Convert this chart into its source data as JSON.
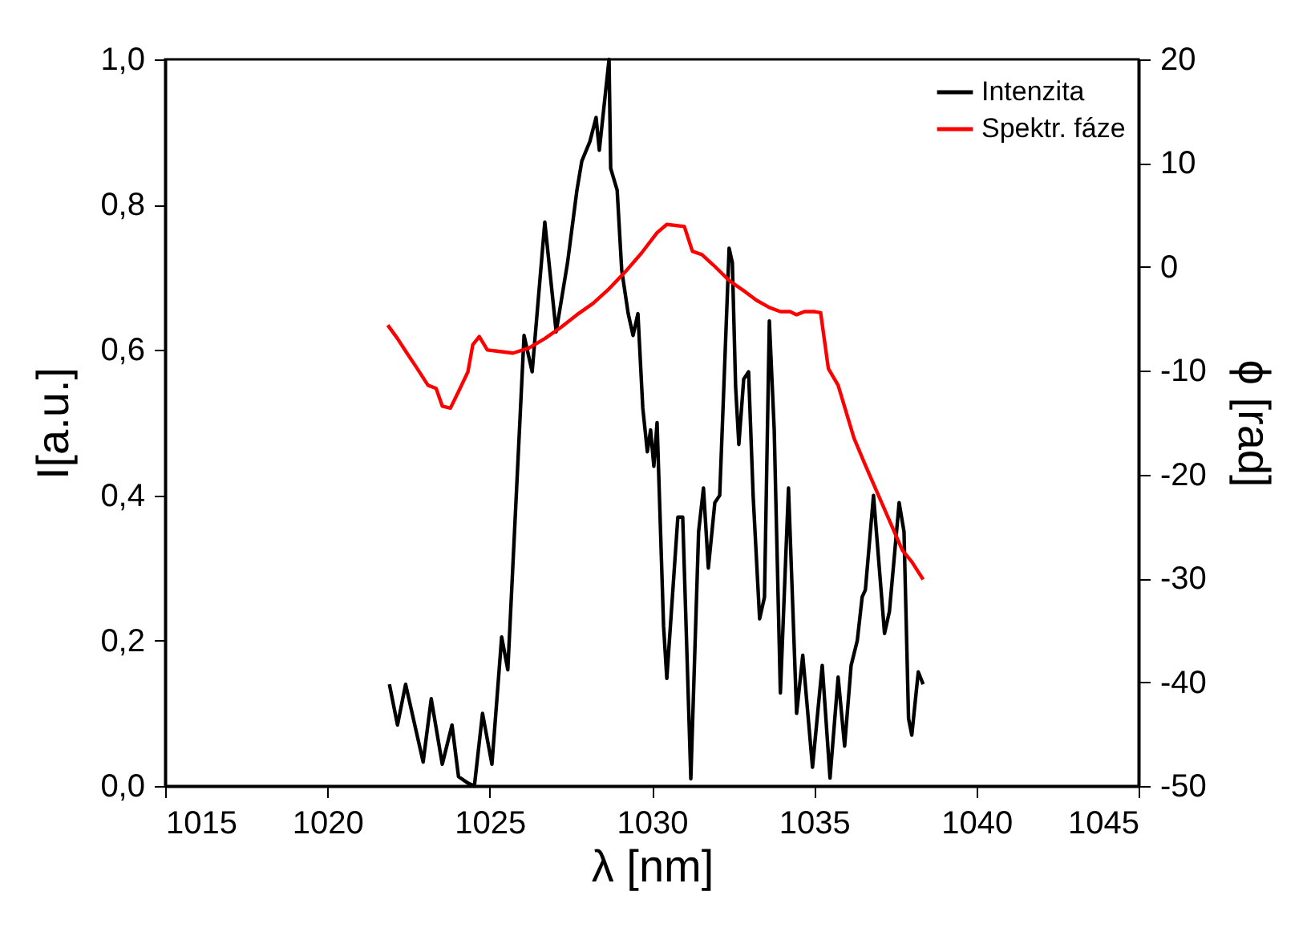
{
  "chart_data": {
    "type": "line",
    "xlabel": "λ [nm]",
    "ylabel": "I[a.u.]",
    "y2label": "ϕ [rad]",
    "xlim": [
      1015,
      1045
    ],
    "xticks": [
      1015,
      1020,
      1025,
      1030,
      1035,
      1040,
      1045
    ],
    "ylim": [
      0,
      1
    ],
    "yticks": [
      {
        "value": 0,
        "label": "0,0"
      },
      {
        "value": 0.2,
        "label": "0,2"
      },
      {
        "value": 0.4,
        "label": "0,4"
      },
      {
        "value": 0.6,
        "label": "0,6"
      },
      {
        "value": 0.8,
        "label": "0,8"
      },
      {
        "value": 1,
        "label": "1,0"
      }
    ],
    "y2lim": [
      -50,
      20
    ],
    "y2ticks": [
      -50,
      -40,
      -30,
      -20,
      -10,
      0,
      10,
      20
    ],
    "legend": "top right",
    "grid": false,
    "series": [
      {
        "name": "Intenzita",
        "color": "#000000",
        "x": [
          1021.91,
          1022.16,
          1022.41,
          1022.95,
          1023.2,
          1023.54,
          1023.84,
          1024.04,
          1024.33,
          1024.53,
          1024.78,
          1025.07,
          1025.37,
          1025.56,
          1026.06,
          1026.31,
          1026.7,
          1027.05,
          1027.4,
          1027.69,
          1027.84,
          1028.09,
          1028.28,
          1028.38,
          1028.68,
          1028.73,
          1028.93,
          1029.07,
          1029.27,
          1029.42,
          1029.57,
          1029.72,
          1029.86,
          1029.96,
          1030.06,
          1030.16,
          1030.36,
          1030.46,
          1030.8,
          1030.95,
          1031.2,
          1031.44,
          1031.59,
          1031.74,
          1031.94,
          1032.09,
          1032.38,
          1032.48,
          1032.58,
          1032.68,
          1032.83,
          1032.98,
          1033.12,
          1033.32,
          1033.47,
          1033.62,
          1033.77,
          1033.96,
          1034.21,
          1034.46,
          1034.65,
          1034.95,
          1035.25,
          1035.49,
          1035.74,
          1035.94,
          1036.14,
          1036.33,
          1036.48,
          1036.58,
          1036.83,
          1037.17,
          1037.32,
          1037.62,
          1037.77,
          1037.91,
          1038.01,
          1038.21,
          1038.36
        ],
        "values": [
          0.14,
          0.084,
          0.14,
          0.033,
          0.12,
          0.03,
          0.084,
          0.013,
          0.004,
          0.0,
          0.1,
          0.03,
          0.205,
          0.16,
          0.62,
          0.57,
          0.776,
          0.625,
          0.72,
          0.82,
          0.86,
          0.887,
          0.92,
          0.875,
          1.0,
          0.85,
          0.82,
          0.71,
          0.65,
          0.62,
          0.65,
          0.52,
          0.46,
          0.49,
          0.44,
          0.5,
          0.22,
          0.148,
          0.37,
          0.37,
          0.01,
          0.35,
          0.41,
          0.3,
          0.39,
          0.4,
          0.74,
          0.72,
          0.55,
          0.47,
          0.56,
          0.57,
          0.4,
          0.23,
          0.26,
          0.64,
          0.49,
          0.128,
          0.41,
          0.1,
          0.18,
          0.026,
          0.166,
          0.011,
          0.15,
          0.055,
          0.166,
          0.2,
          0.26,
          0.27,
          0.4,
          0.21,
          0.24,
          0.39,
          0.35,
          0.093,
          0.07,
          0.157,
          0.14
        ]
      },
      {
        "name": "Spektr. fáze",
        "color": "#ff0000",
        "axis": "y2",
        "x": [
          1021.86,
          1022.16,
          1022.41,
          1022.75,
          1023.1,
          1023.35,
          1023.54,
          1023.79,
          1024.04,
          1024.33,
          1024.48,
          1024.68,
          1024.93,
          1025.22,
          1025.72,
          1026.21,
          1026.7,
          1027.2,
          1027.69,
          1028.19,
          1028.68,
          1029.17,
          1029.67,
          1030.16,
          1030.46,
          1031.0,
          1031.25,
          1031.54,
          1031.89,
          1032.38,
          1032.88,
          1033.22,
          1033.62,
          1033.96,
          1034.26,
          1034.46,
          1034.7,
          1035.0,
          1035.2,
          1035.44,
          1035.74,
          1036.23,
          1036.58,
          1037.22,
          1037.72,
          1038.01,
          1038.36
        ],
        "values": [
          -5.6,
          -6.9,
          -8.1,
          -9.7,
          -11.4,
          -11.7,
          -13.4,
          -13.6,
          -12.0,
          -10.1,
          -7.5,
          -6.7,
          -8.0,
          -8.1,
          -8.3,
          -7.8,
          -6.9,
          -5.8,
          -4.6,
          -3.5,
          -2.1,
          -0.5,
          1.3,
          3.3,
          4.1,
          3.9,
          1.5,
          1.2,
          0.2,
          -1.3,
          -2.4,
          -3.2,
          -3.9,
          -4.3,
          -4.3,
          -4.6,
          -4.3,
          -4.3,
          -4.4,
          -9.8,
          -11.4,
          -16.5,
          -19.1,
          -23.7,
          -27.3,
          -28.4,
          -30.1
        ]
      }
    ]
  }
}
